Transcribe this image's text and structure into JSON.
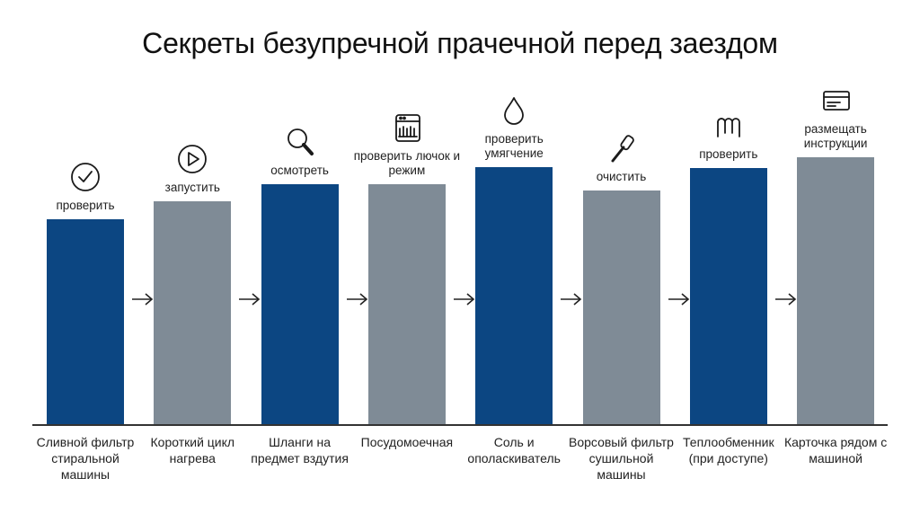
{
  "title": "Секреты безупречной прачечной перед заездом",
  "colors": {
    "primary": "#0c4682",
    "secondary": "#7f8b96",
    "text": "#222222"
  },
  "steps": [
    {
      "action": "проверить",
      "label": "Сливной фильтр стиральной машины",
      "icon": "checkmark-circle-icon",
      "level": 228,
      "color": "primary"
    },
    {
      "action": "запустить",
      "label": "Короткий цикл нагрева",
      "icon": "play-circle-icon",
      "level": 248,
      "color": "secondary"
    },
    {
      "action": "осмотреть",
      "label": "Шланги на предмет вздутия",
      "icon": "magnifier-icon",
      "level": 267,
      "color": "primary"
    },
    {
      "action": "проверить лючок и режим",
      "label": "Посудомоечная",
      "icon": "dishwasher-icon",
      "level": 267,
      "color": "secondary"
    },
    {
      "action": "проверить умягчение",
      "label": "Соль и ополаскиватель",
      "icon": "water-drop-icon",
      "level": 286,
      "color": "primary"
    },
    {
      "action": "очистить",
      "label": "Ворсовый фильтр сушильной машины",
      "icon": "lint-roller-icon",
      "level": 260,
      "color": "secondary"
    },
    {
      "action": "проверить",
      "label": "Теплообменник (при доступе)",
      "icon": "coil-icon",
      "level": 285,
      "color": "primary"
    },
    {
      "action": "размещать инструкции",
      "label": "Карточка рядом с машиной",
      "icon": "card-icon",
      "level": 297,
      "color": "secondary"
    }
  ]
}
